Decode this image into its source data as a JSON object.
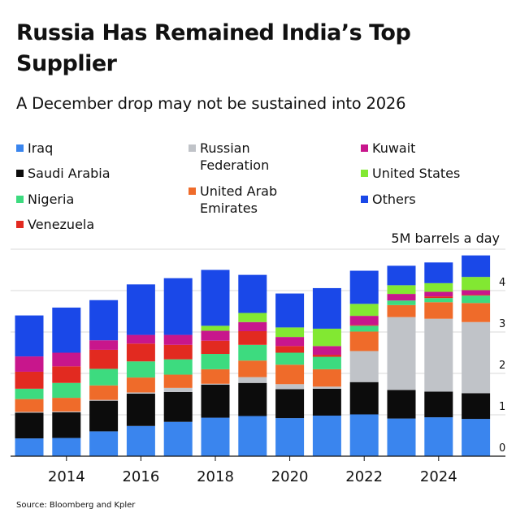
{
  "chart_data": {
    "type": "bar",
    "stacked": true,
    "title": "Russia Has Remained India’s Top Supplier",
    "subtitle": "A December drop may not be sustained into 2026",
    "unit_label": "5M barrels a day",
    "source": "Source: Bloomberg and Kpler",
    "x": [
      2013,
      2014,
      2015,
      2016,
      2017,
      2018,
      2019,
      2020,
      2021,
      2022,
      2023,
      2024,
      2025
    ],
    "x_tick_labels": [
      "2014",
      "2016",
      "2018",
      "2020",
      "2022",
      "2024"
    ],
    "x_tick_values": [
      2014,
      2016,
      2018,
      2020,
      2022,
      2024
    ],
    "y_ticks": [
      0,
      1,
      2,
      3,
      4
    ],
    "ylim": [
      0,
      5
    ],
    "series": [
      {
        "name": "Iraq",
        "color": "#3a85ee",
        "values": [
          0.43,
          0.44,
          0.6,
          0.73,
          0.83,
          0.93,
          0.97,
          0.92,
          0.98,
          1.01,
          0.91,
          0.94,
          0.9
        ]
      },
      {
        "name": "Saudi Arabia",
        "color": "#0c0c0c",
        "values": [
          0.62,
          0.62,
          0.74,
          0.78,
          0.72,
          0.8,
          0.8,
          0.7,
          0.65,
          0.78,
          0.69,
          0.62,
          0.62
        ]
      },
      {
        "name": "Russian Federation",
        "color": "#c0c3c8",
        "values": [
          0.02,
          0.02,
          0.02,
          0.03,
          0.1,
          0.02,
          0.14,
          0.12,
          0.05,
          0.75,
          1.76,
          1.76,
          1.72
        ]
      },
      {
        "name": "United Arab Emirates",
        "color": "#ef6b2a",
        "values": [
          0.31,
          0.33,
          0.35,
          0.36,
          0.32,
          0.35,
          0.4,
          0.47,
          0.42,
          0.47,
          0.29,
          0.4,
          0.46
        ]
      },
      {
        "name": "Nigeria",
        "color": "#3ddb7f",
        "values": [
          0.25,
          0.36,
          0.4,
          0.39,
          0.37,
          0.37,
          0.38,
          0.29,
          0.3,
          0.14,
          0.11,
          0.1,
          0.18
        ]
      },
      {
        "name": "Venezuela",
        "color": "#e22a20",
        "values": [
          0.41,
          0.4,
          0.46,
          0.43,
          0.35,
          0.32,
          0.33,
          0.16,
          0.05,
          0.02,
          0.0,
          0.04,
          0.02
        ]
      },
      {
        "name": "Kuwait",
        "color": "#c8168c",
        "values": [
          0.37,
          0.33,
          0.23,
          0.21,
          0.24,
          0.24,
          0.22,
          0.22,
          0.21,
          0.22,
          0.16,
          0.11,
          0.11
        ]
      },
      {
        "name": "United States",
        "color": "#82e832",
        "values": [
          0.0,
          0.0,
          0.0,
          0.0,
          0.0,
          0.12,
          0.22,
          0.23,
          0.42,
          0.29,
          0.21,
          0.21,
          0.32
        ]
      },
      {
        "name": "Others",
        "color": "#1a48e8",
        "values": [
          0.99,
          1.09,
          0.97,
          1.22,
          1.37,
          1.35,
          0.92,
          0.82,
          0.98,
          0.8,
          0.47,
          0.5,
          0.52
        ]
      }
    ],
    "legend": [
      {
        "name": "Iraq",
        "color": "#3a85ee"
      },
      {
        "name": "Saudi Arabia",
        "color": "#0c0c0c"
      },
      {
        "name": "Nigeria",
        "color": "#3ddb7f"
      },
      {
        "name": "Venezuela",
        "color": "#e22a20"
      },
      {
        "name": "Russian\nFederation",
        "color": "#c0c3c8"
      },
      {
        "name": "United Arab\nEmirates",
        "color": "#ef6b2a"
      },
      {
        "name": "Kuwait",
        "color": "#c8168c"
      },
      {
        "name": "United States",
        "color": "#82e832"
      },
      {
        "name": "Others",
        "color": "#1a48e8"
      }
    ],
    "grid": true,
    "legend_position": "top"
  }
}
